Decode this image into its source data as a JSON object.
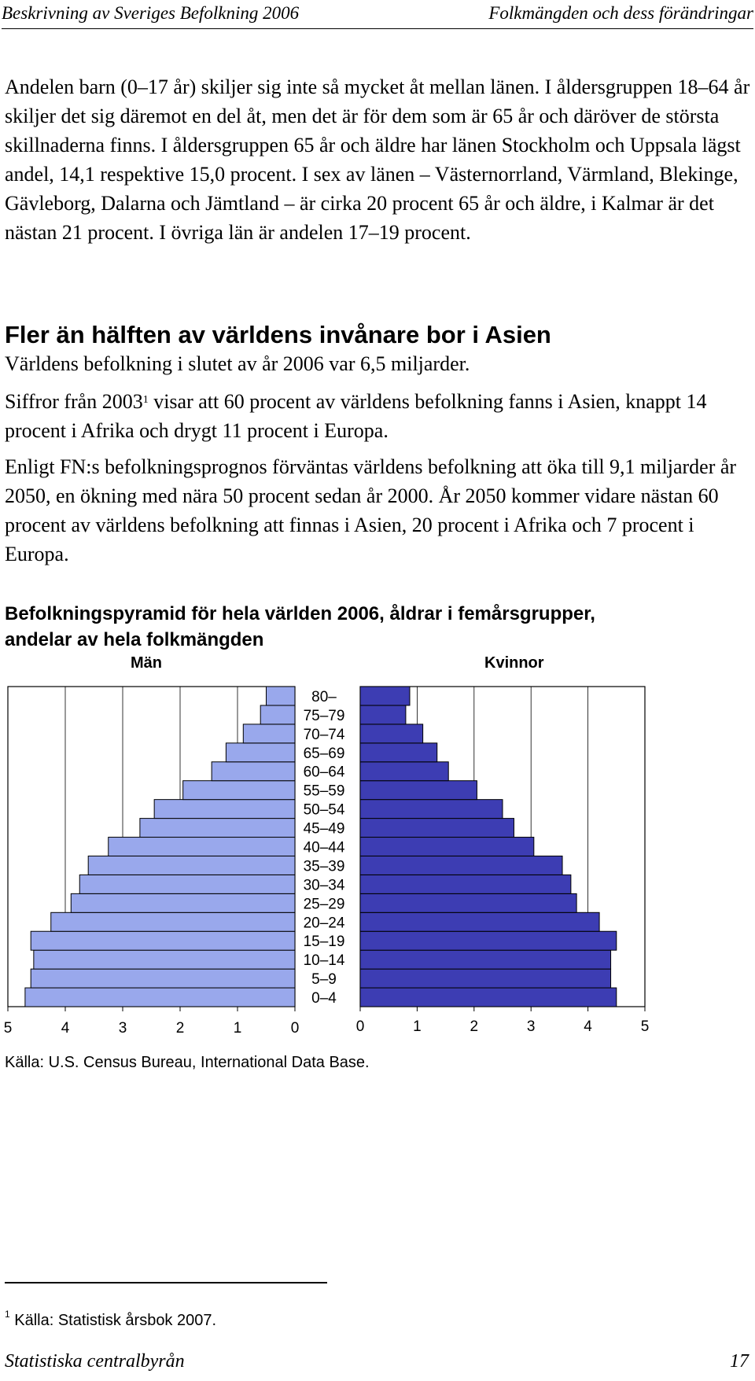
{
  "header": {
    "left": "Beskrivning av Sveriges Befolkning 2006",
    "right": "Folkmängden och dess förändringar"
  },
  "paragraph1": "Andelen barn (0–17 år) skiljer sig inte så mycket åt mellan länen. I åldersgruppen 18–64 år skiljer det sig däremot en del åt, men det är för dem som är 65 år och däröver de största skillnaderna finns. I åldersgruppen 65 år och äldre har länen Stockholm och Uppsala lägst andel, 14,1 respektive 15,0 procent. I sex av länen – Västernorrland, Värmland, Blekinge, Gävleborg, Dalarna och Jämtland – är cirka 20 procent 65 år och äldre, i Kalmar är det nästan 21 procent. I övriga län är andelen 17–19 procent.",
  "section_heading": "Fler än hälften av världens invånare bor i Asien",
  "lead": "Världens befolkning i slutet av år 2006 var 6,5 miljarder.",
  "paragraph2_a": "Siffror från 2003",
  "paragraph2_sup": "1",
  "paragraph2_b": " visar att 60 procent av världens befolkning fanns i Asien, knappt 14 procent i Afrika och drygt 11 procent i Europa.",
  "paragraph3": "Enligt FN:s befolkningsprognos förväntas världens befolkning att öka till 9,1 miljarder år 2050, en ökning med nära 50 procent sedan år 2000. År 2050 kommer vidare nästan 60 procent av världens befolkning att finnas i Asien, 20 procent i Afrika och 7 procent i Europa.",
  "chart_title": "Befolkningspyramid för hela världen 2006, åldrar i femårsgrupper, andelar av hela folkmängden",
  "source": "Källa: U.S. Census Bureau, International Data Base.",
  "footnote_mark": "1",
  "footnote_text": " Källa: Statistisk årsbok 2007.",
  "footer": {
    "left": "Statistiska centralbyrån",
    "right": "17"
  },
  "chart_data": {
    "type": "bar",
    "orientation": "horizontal",
    "categories": [
      "0–4",
      "5–9",
      "10–14",
      "15–19",
      "20–24",
      "25–29",
      "30–34",
      "35–39",
      "40–44",
      "45–49",
      "50–54",
      "55–59",
      "60–64",
      "65–69",
      "70–74",
      "75–79",
      "80–"
    ],
    "series": [
      {
        "name": "Män",
        "color": "#99a8ec",
        "values": [
          4.7,
          4.6,
          4.55,
          4.6,
          4.25,
          3.9,
          3.75,
          3.6,
          3.25,
          2.7,
          2.45,
          1.95,
          1.45,
          1.2,
          0.9,
          0.6,
          0.5
        ]
      },
      {
        "name": "Kvinnor",
        "color": "#3d3db3",
        "values": [
          4.5,
          4.4,
          4.4,
          4.5,
          4.2,
          3.8,
          3.7,
          3.55,
          3.05,
          2.7,
          2.5,
          2.05,
          1.55,
          1.35,
          1.1,
          0.8,
          0.87
        ]
      }
    ],
    "xlim": [
      0,
      5
    ],
    "xticks": [
      "0",
      "1",
      "2",
      "3",
      "4",
      "5"
    ],
    "grid": true
  }
}
